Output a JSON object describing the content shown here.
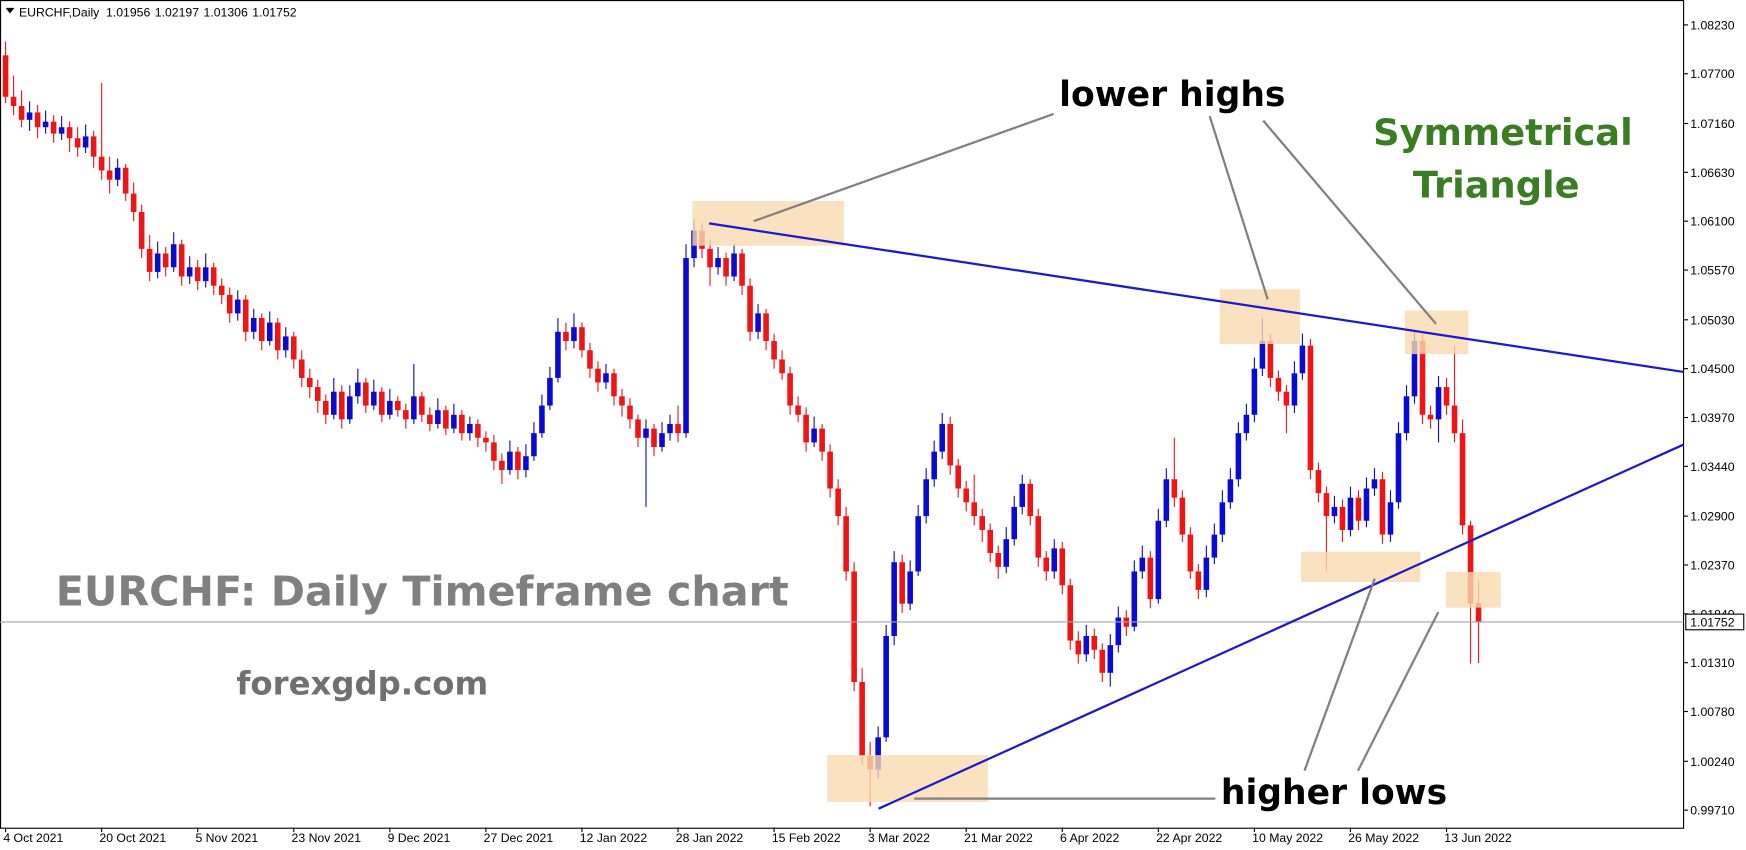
{
  "chart_data": {
    "type": "candlestick",
    "title": "EURCHF,Daily",
    "annotations": {
      "lower_highs": "lower highs",
      "pattern_line1": "Symmetrical",
      "pattern_line2": "Triangle",
      "headline": "EURCHF: Daily Timeframe chart",
      "site": "forexgdp.com",
      "higher_lows": "higher lows"
    },
    "up_color": "#0a0ad2",
    "down_color": "#f01414",
    "price_line_color": "#9aa6b0",
    "ylim": [
      0.9952,
      1.085
    ],
    "yticks": [
      {
        "value": 1.0823,
        "label": "1.08230"
      },
      {
        "value": 1.077,
        "label": "1.07700"
      },
      {
        "value": 1.0716,
        "label": "1.07160"
      },
      {
        "value": 1.0663,
        "label": "1.06630"
      },
      {
        "value": 1.061,
        "label": "1.06100"
      },
      {
        "value": 1.0557,
        "label": "1.05570"
      },
      {
        "value": 1.0503,
        "label": "1.05030"
      },
      {
        "value": 1.045,
        "label": "1.04500"
      },
      {
        "value": 1.0397,
        "label": "1.03970"
      },
      {
        "value": 1.0344,
        "label": "1.03440"
      },
      {
        "value": 1.029,
        "label": "1.02900"
      },
      {
        "value": 1.0237,
        "label": "1.02370"
      },
      {
        "value": 1.0184,
        "label": "1.01840"
      },
      {
        "value": 1.0131,
        "label": "1.01310"
      },
      {
        "value": 1.0078,
        "label": "1.00780"
      },
      {
        "value": 1.0024,
        "label": "1.00240"
      },
      {
        "value": 0.9971,
        "label": "0.99710"
      }
    ],
    "categories": [
      "4 Oct 2021",
      null,
      null,
      null,
      null,
      null,
      null,
      null,
      null,
      null,
      null,
      null,
      "20 Oct 2021",
      null,
      null,
      null,
      null,
      null,
      null,
      null,
      null,
      null,
      null,
      null,
      "5 Nov 2021",
      null,
      null,
      null,
      null,
      null,
      null,
      null,
      null,
      null,
      null,
      null,
      "23 Nov 2021",
      null,
      null,
      null,
      null,
      null,
      null,
      null,
      null,
      null,
      null,
      null,
      "9 Dec 2021",
      null,
      null,
      null,
      null,
      null,
      null,
      null,
      null,
      null,
      null,
      null,
      "27 Dec 2021",
      null,
      null,
      null,
      null,
      null,
      null,
      null,
      null,
      null,
      null,
      null,
      "12 Jan 2022",
      null,
      null,
      null,
      null,
      null,
      null,
      null,
      null,
      null,
      null,
      null,
      "28 Jan 2022",
      null,
      null,
      null,
      null,
      null,
      null,
      null,
      null,
      null,
      null,
      null,
      "15 Feb 2022",
      null,
      null,
      null,
      null,
      null,
      null,
      null,
      null,
      null,
      null,
      null,
      "3 Mar 2022",
      null,
      null,
      null,
      null,
      null,
      null,
      null,
      null,
      null,
      null,
      null,
      "21 Mar 2022",
      null,
      null,
      null,
      null,
      null,
      null,
      null,
      null,
      null,
      null,
      null,
      "6 Apr 2022",
      null,
      null,
      null,
      null,
      null,
      null,
      null,
      null,
      null,
      null,
      null,
      "22 Apr 2022",
      null,
      null,
      null,
      null,
      null,
      null,
      null,
      null,
      null,
      null,
      null,
      "10 May 2022",
      null,
      null,
      null,
      null,
      null,
      null,
      null,
      null,
      null,
      null,
      null,
      "26 May 2022",
      null,
      null,
      null,
      null,
      null,
      null,
      null,
      null,
      null,
      null,
      null,
      "13 Jun 2022",
      null,
      null,
      null,
      null
    ],
    "candles": [
      [
        1.079,
        1.0805,
        1.0738,
        1.0745
      ],
      [
        1.0745,
        1.0768,
        1.0725,
        1.0735
      ],
      [
        1.0735,
        1.0752,
        1.0712,
        1.072
      ],
      [
        1.072,
        1.074,
        1.0708,
        1.0728
      ],
      [
        1.0728,
        1.0736,
        1.07,
        1.0712
      ],
      [
        1.0712,
        1.073,
        1.0705,
        1.0718
      ],
      [
        1.0718,
        1.0725,
        1.0695,
        1.0705
      ],
      [
        1.0705,
        1.0724,
        1.0698,
        1.0712
      ],
      [
        1.0712,
        1.0718,
        1.0685,
        1.07
      ],
      [
        1.07,
        1.0712,
        1.068,
        1.069
      ],
      [
        1.069,
        1.0715,
        1.0684,
        1.0702
      ],
      [
        1.0702,
        1.0708,
        1.0668,
        1.068
      ],
      [
        1.068,
        1.076,
        1.0655,
        1.0665
      ],
      [
        1.0665,
        1.068,
        1.064,
        1.0655
      ],
      [
        1.0655,
        1.0678,
        1.0648,
        1.0668
      ],
      [
        1.0668,
        1.0672,
        1.0632,
        1.064
      ],
      [
        1.064,
        1.0652,
        1.061,
        1.062
      ],
      [
        1.062,
        1.0628,
        1.057,
        1.058
      ],
      [
        1.058,
        1.0595,
        1.0545,
        1.0555
      ],
      [
        1.0555,
        1.0588,
        1.0548,
        1.0575
      ],
      [
        1.0575,
        1.0582,
        1.055,
        1.056
      ],
      [
        1.056,
        1.0598,
        1.0555,
        1.0585
      ],
      [
        1.0585,
        1.059,
        1.054,
        1.055
      ],
      [
        1.055,
        1.0572,
        1.0542,
        1.056
      ],
      [
        1.056,
        1.0568,
        1.0535,
        1.0545
      ],
      [
        1.0545,
        1.0575,
        1.0538,
        1.056
      ],
      [
        1.056,
        1.0565,
        1.053,
        1.054
      ],
      [
        1.054,
        1.0548,
        1.052,
        1.053
      ],
      [
        1.053,
        1.0538,
        1.05,
        1.051
      ],
      [
        1.051,
        1.0535,
        1.0502,
        1.0525
      ],
      [
        1.0525,
        1.053,
        1.048,
        1.049
      ],
      [
        1.049,
        1.0515,
        1.0482,
        1.0505
      ],
      [
        1.0505,
        1.051,
        1.047,
        1.048
      ],
      [
        1.048,
        1.0512,
        1.0475,
        1.05
      ],
      [
        1.05,
        1.0505,
        1.046,
        1.047
      ],
      [
        1.047,
        1.0495,
        1.0462,
        1.0485
      ],
      [
        1.0485,
        1.049,
        1.045,
        1.046
      ],
      [
        1.046,
        1.047,
        1.043,
        1.044
      ],
      [
        1.044,
        1.045,
        1.0418,
        1.043
      ],
      [
        1.043,
        1.0438,
        1.0402,
        1.0415
      ],
      [
        1.0415,
        1.0422,
        1.039,
        1.04
      ],
      [
        1.04,
        1.044,
        1.0395,
        1.0425
      ],
      [
        1.0425,
        1.0432,
        1.0385,
        1.0395
      ],
      [
        1.0395,
        1.0432,
        1.039,
        1.042
      ],
      [
        1.042,
        1.045,
        1.0412,
        1.0435
      ],
      [
        1.0435,
        1.044,
        1.0402,
        1.041
      ],
      [
        1.041,
        1.0438,
        1.0405,
        1.0425
      ],
      [
        1.0425,
        1.043,
        1.0392,
        1.04
      ],
      [
        1.04,
        1.0428,
        1.0395,
        1.0415
      ],
      [
        1.0415,
        1.042,
        1.0398,
        1.0405
      ],
      [
        1.0405,
        1.0412,
        1.0385,
        1.0395
      ],
      [
        1.0395,
        1.0455,
        1.039,
        1.042
      ],
      [
        1.042,
        1.0425,
        1.0392,
        1.04
      ],
      [
        1.04,
        1.0408,
        1.0382,
        1.039
      ],
      [
        1.039,
        1.0418,
        1.0385,
        1.0405
      ],
      [
        1.0405,
        1.041,
        1.0378,
        1.0385
      ],
      [
        1.0385,
        1.0412,
        1.038,
        1.04
      ],
      [
        1.04,
        1.0405,
        1.0372,
        1.038
      ],
      [
        1.038,
        1.0398,
        1.0372,
        1.039
      ],
      [
        1.039,
        1.0395,
        1.0365,
        1.0375
      ],
      [
        1.0375,
        1.0382,
        1.036,
        1.037
      ],
      [
        1.037,
        1.0378,
        1.034,
        1.035
      ],
      [
        1.035,
        1.0358,
        1.0325,
        1.034
      ],
      [
        1.034,
        1.0372,
        1.0335,
        1.036
      ],
      [
        1.036,
        1.0365,
        1.033,
        1.034
      ],
      [
        1.034,
        1.0368,
        1.0332,
        1.0355
      ],
      [
        1.0355,
        1.0392,
        1.035,
        1.038
      ],
      [
        1.038,
        1.0422,
        1.0375,
        1.041
      ],
      [
        1.041,
        1.0452,
        1.0405,
        1.044
      ],
      [
        1.044,
        1.0505,
        1.0435,
        1.049
      ],
      [
        1.049,
        1.05,
        1.047,
        1.048
      ],
      [
        1.048,
        1.051,
        1.0472,
        1.0495
      ],
      [
        1.0495,
        1.05,
        1.0462,
        1.047
      ],
      [
        1.047,
        1.0478,
        1.044,
        1.045
      ],
      [
        1.045,
        1.0458,
        1.0425,
        1.0435
      ],
      [
        1.0435,
        1.0455,
        1.0428,
        1.0445
      ],
      [
        1.0445,
        1.045,
        1.041,
        1.042
      ],
      [
        1.042,
        1.0428,
        1.0398,
        1.041
      ],
      [
        1.041,
        1.0418,
        1.0385,
        1.0395
      ],
      [
        1.0395,
        1.04,
        1.0365,
        1.0375
      ],
      [
        1.0375,
        1.0395,
        1.03,
        1.0385
      ],
      [
        1.0385,
        1.039,
        1.0355,
        1.0365
      ],
      [
        1.0365,
        1.0392,
        1.036,
        1.038
      ],
      [
        1.038,
        1.04,
        1.0372,
        1.039
      ],
      [
        1.039,
        1.041,
        1.037,
        1.038
      ],
      [
        1.038,
        1.0585,
        1.0375,
        1.057
      ],
      [
        1.057,
        1.0612,
        1.056,
        1.06
      ],
      [
        1.06,
        1.0608,
        1.057,
        1.058
      ],
      [
        1.058,
        1.059,
        1.054,
        1.056
      ],
      [
        1.056,
        1.0582,
        1.0552,
        1.057
      ],
      [
        1.057,
        1.0576,
        1.054,
        1.055
      ],
      [
        1.055,
        1.0585,
        1.0545,
        1.0575
      ],
      [
        1.0575,
        1.058,
        1.053,
        1.054
      ],
      [
        1.054,
        1.0548,
        1.048,
        1.049
      ],
      [
        1.049,
        1.052,
        1.0482,
        1.051
      ],
      [
        1.051,
        1.0515,
        1.047,
        1.048
      ],
      [
        1.048,
        1.0488,
        1.045,
        1.046
      ],
      [
        1.046,
        1.047,
        1.0438,
        1.0445
      ],
      [
        1.0445,
        1.0452,
        1.04,
        1.041
      ],
      [
        1.041,
        1.042,
        1.0392,
        1.04
      ],
      [
        1.04,
        1.0408,
        1.036,
        1.037
      ],
      [
        1.037,
        1.0398,
        1.0365,
        1.0385
      ],
      [
        1.0385,
        1.039,
        1.035,
        1.036
      ],
      [
        1.036,
        1.0368,
        1.031,
        1.032
      ],
      [
        1.032,
        1.033,
        1.028,
        1.029
      ],
      [
        1.029,
        1.03,
        1.022,
        1.023
      ],
      [
        1.023,
        1.024,
        1.01,
        1.011
      ],
      [
        1.011,
        1.0125,
        1.002,
        1.003
      ],
      [
        1.003,
        1.0045,
        0.9975,
        1.0015
      ],
      [
        1.0015,
        1.0062,
        1.0005,
        1.005
      ],
      [
        1.005,
        1.0172,
        1.0045,
        1.016
      ],
      [
        1.016,
        1.0252,
        1.015,
        1.024
      ],
      [
        1.024,
        1.0248,
        1.0185,
        1.0195
      ],
      [
        1.0195,
        1.0242,
        1.0188,
        1.023
      ],
      [
        1.023,
        1.0302,
        1.0225,
        1.029
      ],
      [
        1.029,
        1.0342,
        1.0282,
        1.033
      ],
      [
        1.033,
        1.0372,
        1.0322,
        1.036
      ],
      [
        1.036,
        1.0402,
        1.0352,
        1.039
      ],
      [
        1.039,
        1.0398,
        1.0335,
        1.0345
      ],
      [
        1.0345,
        1.0352,
        1.031,
        1.032
      ],
      [
        1.032,
        1.0328,
        1.0295,
        1.0305
      ],
      [
        1.0305,
        1.0335,
        1.028,
        1.029
      ],
      [
        1.029,
        1.0298,
        1.0262,
        1.0275
      ],
      [
        1.0275,
        1.0282,
        1.024,
        1.025
      ],
      [
        1.025,
        1.0258,
        1.0222,
        1.0235
      ],
      [
        1.0235,
        1.0278,
        1.0228,
        1.0265
      ],
      [
        1.0265,
        1.0312,
        1.0258,
        1.03
      ],
      [
        1.03,
        1.0335,
        1.0292,
        1.0325
      ],
      [
        1.0325,
        1.033,
        1.028,
        1.029
      ],
      [
        1.029,
        1.0298,
        1.0235,
        1.0245
      ],
      [
        1.0245,
        1.0252,
        1.022,
        1.023
      ],
      [
        1.023,
        1.0265,
        1.0222,
        1.0255
      ],
      [
        1.0255,
        1.0262,
        1.0205,
        1.0215
      ],
      [
        1.0215,
        1.0222,
        1.0145,
        1.0155
      ],
      [
        1.0155,
        1.0165,
        1.013,
        1.014
      ],
      [
        1.014,
        1.0172,
        1.0132,
        1.016
      ],
      [
        1.016,
        1.0168,
        1.0135,
        1.0145
      ],
      [
        1.0145,
        1.0152,
        1.011,
        1.012
      ],
      [
        1.012,
        1.0162,
        1.0105,
        1.015
      ],
      [
        1.015,
        1.0192,
        1.0142,
        1.018
      ],
      [
        1.018,
        1.0188,
        1.016,
        1.017
      ],
      [
        1.017,
        1.0242,
        1.0165,
        1.023
      ],
      [
        1.023,
        1.0258,
        1.0222,
        1.0245
      ],
      [
        1.0245,
        1.0252,
        1.019,
        1.02
      ],
      [
        1.02,
        1.0298,
        1.0195,
        1.0285
      ],
      [
        1.0285,
        1.0342,
        1.0278,
        1.033
      ],
      [
        1.033,
        1.0375,
        1.03,
        1.031
      ],
      [
        1.031,
        1.0318,
        1.0262,
        1.027
      ],
      [
        1.027,
        1.0278,
        1.0222,
        1.023
      ],
      [
        1.023,
        1.0238,
        1.02,
        1.021
      ],
      [
        1.021,
        1.0258,
        1.0202,
        1.0245
      ],
      [
        1.0245,
        1.0282,
        1.0238,
        1.027
      ],
      [
        1.027,
        1.0318,
        1.0262,
        1.0305
      ],
      [
        1.0305,
        1.0342,
        1.0298,
        1.033
      ],
      [
        1.033,
        1.0392,
        1.0322,
        1.038
      ],
      [
        1.038,
        1.0412,
        1.0372,
        1.04
      ],
      [
        1.04,
        1.0462,
        1.0392,
        1.045
      ],
      [
        1.045,
        1.0505,
        1.0442,
        1.048
      ],
      [
        1.048,
        1.0488,
        1.043,
        1.044
      ],
      [
        1.044,
        1.0448,
        1.0415,
        1.0425
      ],
      [
        1.0425,
        1.0432,
        1.038,
        1.041
      ],
      [
        1.041,
        1.0458,
        1.0402,
        1.0445
      ],
      [
        1.0445,
        1.0488,
        1.0438,
        1.0475
      ],
      [
        1.0475,
        1.0482,
        1.033,
        1.034
      ],
      [
        1.034,
        1.0348,
        1.0305,
        1.0315
      ],
      [
        1.0315,
        1.0322,
        1.023,
        1.029
      ],
      [
        1.029,
        1.0312,
        1.0282,
        1.03
      ],
      [
        1.03,
        1.0308,
        1.0262,
        1.0275
      ],
      [
        1.0275,
        1.0322,
        1.0268,
        1.031
      ],
      [
        1.031,
        1.0318,
        1.0275,
        1.0285
      ],
      [
        1.0285,
        1.0332,
        1.0278,
        1.032
      ],
      [
        1.032,
        1.0342,
        1.0312,
        1.033
      ],
      [
        1.033,
        1.0338,
        1.026,
        1.027
      ],
      [
        1.027,
        1.0318,
        1.0262,
        1.0305
      ],
      [
        1.0305,
        1.0392,
        1.0298,
        1.038
      ],
      [
        1.038,
        1.0432,
        1.0372,
        1.042
      ],
      [
        1.042,
        1.0492,
        1.0412,
        1.048
      ],
      [
        1.048,
        1.0488,
        1.039,
        1.04
      ],
      [
        1.04,
        1.041,
        1.0385,
        1.0395
      ],
      [
        1.0395,
        1.0442,
        1.037,
        1.043
      ],
      [
        1.043,
        1.044,
        1.04,
        1.041
      ],
      [
        1.041,
        1.0475,
        1.037,
        1.038
      ],
      [
        1.038,
        1.0395,
        1.027,
        1.028
      ],
      [
        1.028,
        1.0285,
        1.013,
        1.0195
      ],
      [
        1.01956,
        1.02197,
        1.01306,
        1.01752
      ]
    ]
  }
}
